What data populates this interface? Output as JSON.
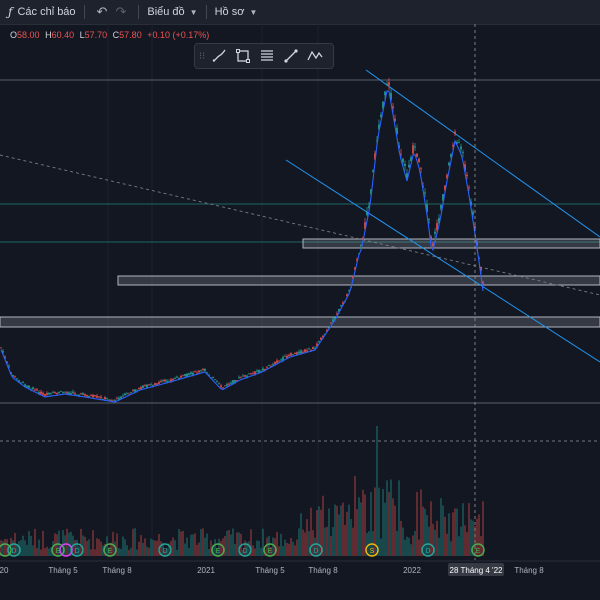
{
  "toolbar": {
    "indicators_label": "Các chỉ báo",
    "chart_type_label": "Biểu đồ",
    "template_label": "Hồ sơ"
  },
  "ohlc": {
    "open_key": "O",
    "open_val": "58.00",
    "high_key": "H",
    "high_val": "60.40",
    "low_key": "L",
    "low_val": "57.70",
    "close_key": "C",
    "close_val": "57.80",
    "change": "+0.10 (+0.17%)"
  },
  "drawing_tools": [
    "brush-icon",
    "rectangle-icon",
    "text-lines-icon",
    "trend-line-icon",
    "pattern-icon"
  ],
  "colors": {
    "background": "#131722",
    "up": "#26a69a",
    "down": "#ef5350",
    "ma": "#2962ff",
    "channel": "#2196f3",
    "level": "#b2b5be"
  },
  "chart_data": {
    "type": "candlestick",
    "x_ticks": [
      "20",
      "Tháng 5",
      "Tháng 8",
      "2021",
      "Tháng 5",
      "Tháng 8",
      "2022",
      "28 Tháng 4 '22",
      "Tháng 8"
    ],
    "crosshair_label": "28 Tháng 4 '22",
    "last_values": {
      "open": 58.0,
      "high": 60.4,
      "low": 57.7,
      "close": 57.8,
      "change": 0.1,
      "change_pct": 0.17
    },
    "event_markers": [
      "D",
      "E",
      "D",
      "E",
      "D",
      "E",
      "D",
      "E",
      "D",
      "S",
      "D",
      "E",
      "E",
      "E"
    ],
    "grid": true
  }
}
